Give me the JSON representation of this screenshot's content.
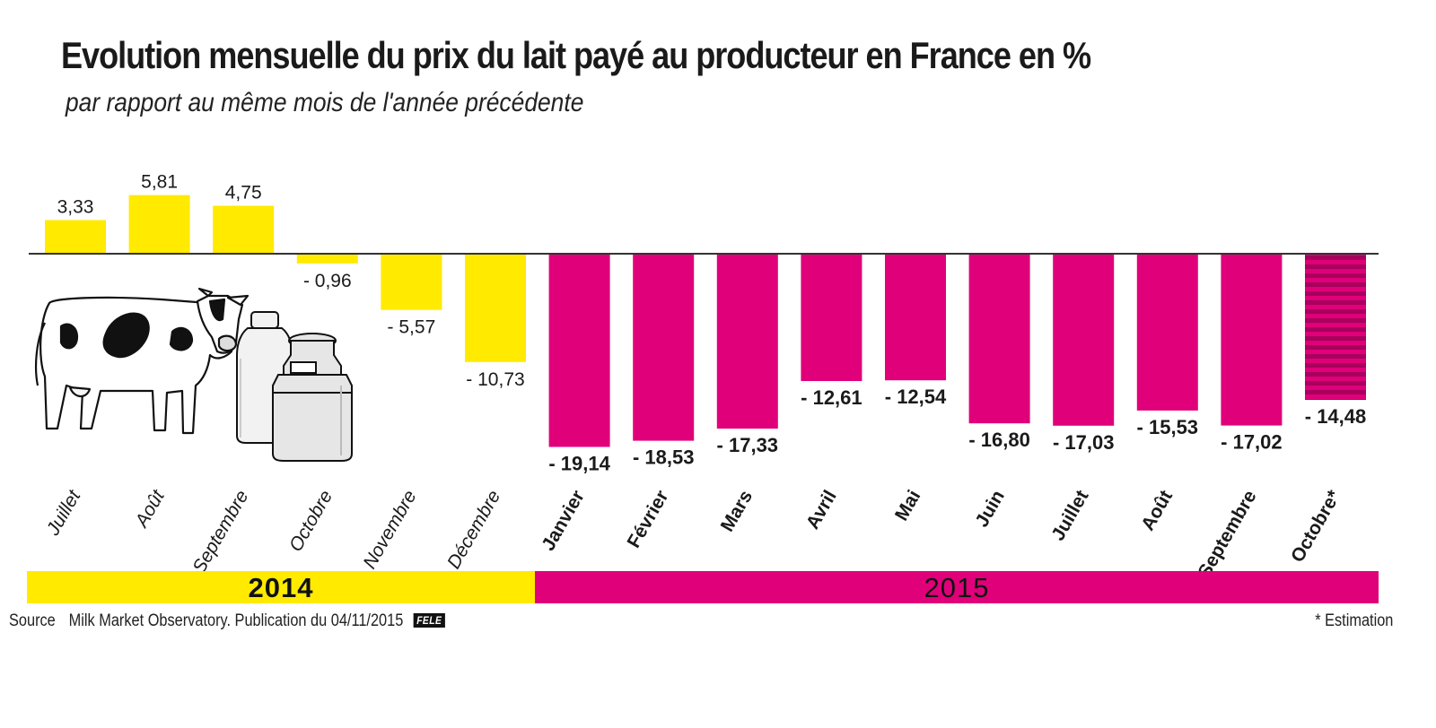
{
  "title": "Evolution mensuelle du prix du lait payé au producteur en France en %",
  "subtitle": "par rapport au même mois de l'année précédente",
  "colors": {
    "2014": "#ffea00",
    "2015": "#e0007a",
    "estimate_stripe": "#a8005c"
  },
  "years": [
    {
      "label": "2014",
      "color": "#ffea00"
    },
    {
      "label": "2015",
      "color": "#e0007a"
    }
  ],
  "chart_data": {
    "type": "bar",
    "title": "Evolution mensuelle du prix du lait payé au producteur en France en %",
    "subtitle": "par rapport au même mois de l'année précédente",
    "xlabel": "",
    "ylabel": "",
    "grid": false,
    "ylim": [
      -20,
      7
    ],
    "categories": [
      "Juillet",
      "Août",
      "Septembre",
      "Octobre",
      "Novembre",
      "Décembre",
      "Janvier",
      "Février",
      "Mars",
      "Avril",
      "Mai",
      "Juin",
      "Juillet",
      "Août",
      "Septembre",
      "Octobre*"
    ],
    "values": [
      3.33,
      5.81,
      4.75,
      -0.96,
      -5.57,
      -10.73,
      -19.14,
      -18.53,
      -17.33,
      -12.61,
      -12.54,
      -16.8,
      -17.03,
      -15.53,
      -17.02,
      -14.48
    ],
    "value_labels": [
      "3,33",
      "5,81",
      "4,75",
      "- 0,96",
      "- 5,57",
      "- 10,73",
      "- 19,14",
      "- 18,53",
      "- 17,33",
      "- 12,61",
      "- 12,54",
      "- 16,80",
      "- 17,03",
      "- 15,53",
      "- 17,02",
      "- 14,48"
    ],
    "year": [
      "2014",
      "2014",
      "2014",
      "2014",
      "2014",
      "2014",
      "2015",
      "2015",
      "2015",
      "2015",
      "2015",
      "2015",
      "2015",
      "2015",
      "2015",
      "2015"
    ],
    "estimated": [
      false,
      false,
      false,
      false,
      false,
      false,
      false,
      false,
      false,
      false,
      false,
      false,
      false,
      false,
      false,
      true
    ]
  },
  "illustration": {
    "icons": [
      "cow-icon",
      "milk-bottle-icon",
      "milk-can-icon"
    ]
  },
  "footer": {
    "source_label": "Source",
    "source_text": "Milk Market Observatory. Publication du 04/11/2015",
    "logo": "FELE",
    "footnote": "* Estimation"
  }
}
